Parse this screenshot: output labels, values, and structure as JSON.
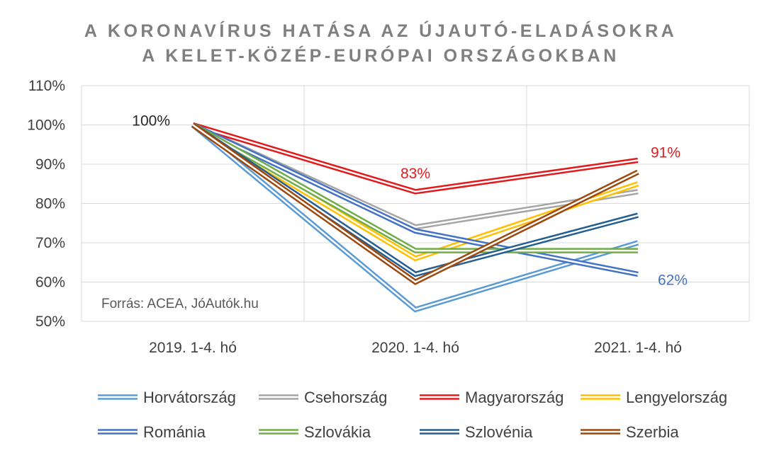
{
  "chart_data": {
    "type": "line",
    "title_lines": [
      "A KORONAVÍRUS HATÁSA AZ ÚJAUTÓ-ELADÁSOKRA",
      "A KELET-KÖZÉP-EURÓPAI ORSZÁGOKBAN"
    ],
    "categories": [
      "2019. 1-4. hó",
      "2020. 1-4. hó",
      "2021. 1-4. hó"
    ],
    "y_ticks": [
      "50%",
      "60%",
      "70%",
      "80%",
      "90%",
      "100%",
      "110%"
    ],
    "ylim": [
      50,
      110
    ],
    "y_unit": "%",
    "grid": true,
    "legend_position": "bottom",
    "source": "Forrás: ACEA, JóAutók.hu",
    "series": [
      {
        "name": "Horvátország",
        "color": "#5b9bd5",
        "values": [
          100,
          53,
          70
        ]
      },
      {
        "name": "Csehország",
        "color": "#a5a5a5",
        "values": [
          100,
          74,
          83
        ]
      },
      {
        "name": "Magyarország",
        "color": "#e31a1c",
        "values": [
          100,
          83,
          91
        ]
      },
      {
        "name": "Lengyelország",
        "color": "#ffc000",
        "values": [
          100,
          66,
          85
        ]
      },
      {
        "name": "Románia",
        "color": "#4472c4",
        "values": [
          100,
          73,
          62
        ]
      },
      {
        "name": "Szlovákia",
        "color": "#70ad47",
        "values": [
          100,
          68,
          68
        ]
      },
      {
        "name": "Szlovénia",
        "color": "#255e91",
        "values": [
          100,
          62,
          77
        ]
      },
      {
        "name": "Szerbia",
        "color": "#9e480e",
        "values": [
          100,
          60,
          88
        ]
      }
    ],
    "annotations": [
      {
        "text": "100%",
        "category_index": 0,
        "value": 100,
        "color": "#262626"
      },
      {
        "text": "83%",
        "category_index": 1,
        "value": 83,
        "color": "#e31a1c"
      },
      {
        "text": "91%",
        "category_index": 2,
        "value": 91,
        "color": "#e31a1c"
      },
      {
        "text": "62%",
        "category_index": 2,
        "value": 62,
        "color": "#4472c4"
      }
    ]
  }
}
